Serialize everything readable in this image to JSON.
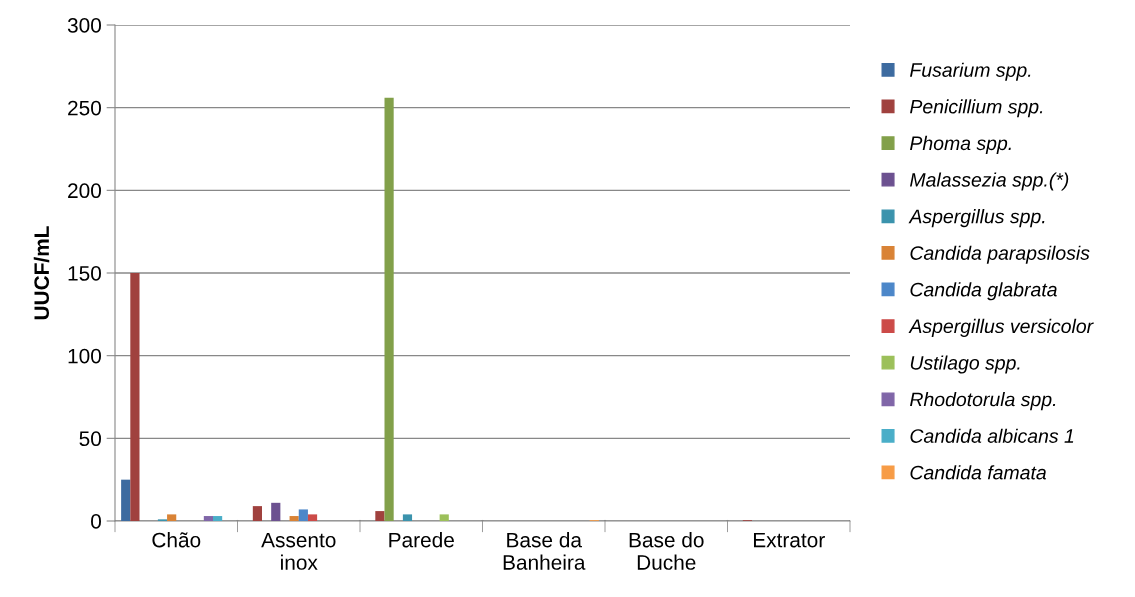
{
  "chart_data": {
    "type": "bar",
    "ylabel": "UUCF/mL",
    "categories": [
      "Chão",
      "Assento\ninox",
      "Parede",
      "Base da\nBanheira",
      "Base do\nDuche",
      "Extrator"
    ],
    "ylim": [
      0,
      300
    ],
    "yticks": [
      0,
      50,
      100,
      150,
      200,
      250,
      300
    ],
    "grid": "y",
    "legend": "right",
    "series": [
      {
        "name": "Fusarium spp.",
        "color": "#3d6ba0",
        "values": [
          25,
          0,
          0,
          0,
          0,
          0
        ]
      },
      {
        "name": "Penicillium spp.",
        "color": "#a0413e",
        "values": [
          150,
          9,
          6,
          0,
          0,
          0.5
        ]
      },
      {
        "name": "Phoma spp.",
        "color": "#82a04a",
        "values": [
          0,
          0,
          256,
          0,
          0,
          0
        ]
      },
      {
        "name": "Malassezia spp.(*)",
        "color": "#6c5190",
        "values": [
          0,
          11,
          0,
          0,
          0,
          0
        ]
      },
      {
        "name": "Aspergillus spp.",
        "color": "#3b93ad",
        "values": [
          1,
          0,
          4,
          0,
          0,
          0
        ]
      },
      {
        "name": "Candida parapsilosis",
        "color": "#d98336",
        "values": [
          4,
          3,
          0,
          0,
          0,
          0
        ]
      },
      {
        "name": "Candida glabrata",
        "color": "#4c87c9",
        "values": [
          0,
          7,
          0,
          0,
          0,
          0
        ]
      },
      {
        "name": "Aspergillus versicolor",
        "color": "#cc4b48",
        "values": [
          0,
          4,
          0,
          0,
          0,
          0
        ]
      },
      {
        "name": "Ustilago spp.",
        "color": "#9cc05a",
        "values": [
          0,
          0,
          4,
          0,
          0,
          0
        ]
      },
      {
        "name": "Rhodotorula spp.",
        "color": "#8066a8",
        "values": [
          3,
          0,
          0,
          0,
          0,
          0
        ]
      },
      {
        "name": "Candida albicans 1",
        "color": "#4aaec8",
        "values": [
          3,
          0,
          0,
          0,
          0,
          0
        ]
      },
      {
        "name": "Candida famata",
        "color": "#f79c46",
        "values": [
          0,
          0,
          0,
          0.5,
          0,
          0
        ]
      }
    ]
  }
}
